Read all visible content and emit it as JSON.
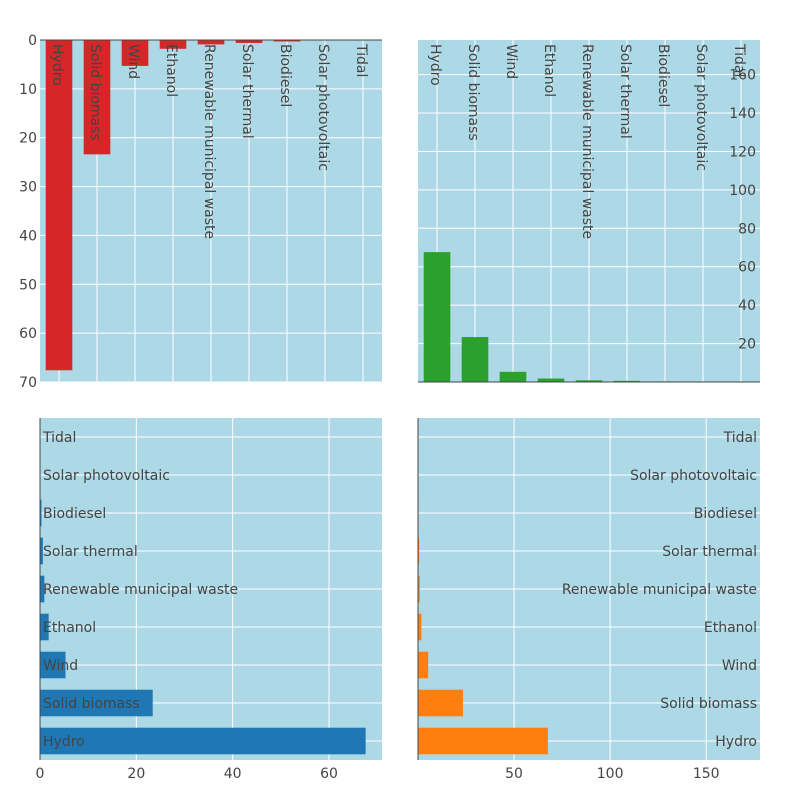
{
  "chart_data": [
    {
      "type": "bar",
      "orientation": "vertical",
      "position": "top-left",
      "color": "#d62728",
      "categories": [
        "Hydro",
        "Solid biomass",
        "Wind",
        "Ethanol",
        "Renewable municipal waste",
        "Solar thermal",
        "Biodiesel",
        "Solar photovoltaic",
        "Tidal"
      ],
      "values": [
        67.6,
        23.4,
        5.3,
        1.8,
        0.9,
        0.6,
        0.3,
        0.1,
        0.0
      ],
      "ylim": [
        0,
        70
      ],
      "y_reversed": true,
      "yticks": [
        "0",
        "10",
        "20",
        "30",
        "40",
        "50",
        "60",
        "70"
      ],
      "grid": true
    },
    {
      "type": "bar",
      "orientation": "vertical",
      "position": "top-right",
      "color": "#2ca02c",
      "categories": [
        "Hydro",
        "Solid biomass",
        "Wind",
        "Ethanol",
        "Renewable municipal waste",
        "Solar thermal",
        "Biodiesel",
        "Solar photovoltaic",
        "Tidal"
      ],
      "values": [
        67.6,
        23.4,
        5.3,
        1.8,
        0.9,
        0.6,
        0.3,
        0.1,
        0.0
      ],
      "ylim": [
        0,
        178
      ],
      "yaxis_side": "right",
      "yticks": [
        "20",
        "40",
        "60",
        "80",
        "100",
        "120",
        "140",
        "160"
      ],
      "grid": true
    },
    {
      "type": "bar",
      "orientation": "horizontal",
      "position": "bottom-left",
      "color": "#1f77b4",
      "categories": [
        "Hydro",
        "Solid biomass",
        "Wind",
        "Ethanol",
        "Renewable municipal waste",
        "Solar thermal",
        "Biodiesel",
        "Solar photovoltaic",
        "Tidal"
      ],
      "values": [
        67.6,
        23.4,
        5.3,
        1.8,
        0.9,
        0.6,
        0.3,
        0.1,
        0.0
      ],
      "xlim": [
        0,
        71
      ],
      "xticks": [
        "0",
        "20",
        "40",
        "60"
      ],
      "grid": true
    },
    {
      "type": "bar",
      "orientation": "horizontal",
      "position": "bottom-right",
      "color": "#ff7f0e",
      "categories": [
        "Hydro",
        "Solid biomass",
        "Wind",
        "Ethanol",
        "Renewable municipal waste",
        "Solar thermal",
        "Biodiesel",
        "Solar photovoltaic",
        "Tidal"
      ],
      "values": [
        67.6,
        23.4,
        5.3,
        1.8,
        0.9,
        0.6,
        0.3,
        0.1,
        0.0
      ],
      "xlim": [
        0,
        178
      ],
      "xticks": [
        "50",
        "100",
        "150"
      ],
      "grid": true
    }
  ],
  "style": {
    "plot_bg": "#add8e6",
    "grid_color": "#ffffff",
    "axis_line_color": "#444444",
    "label_color": "#444444"
  }
}
